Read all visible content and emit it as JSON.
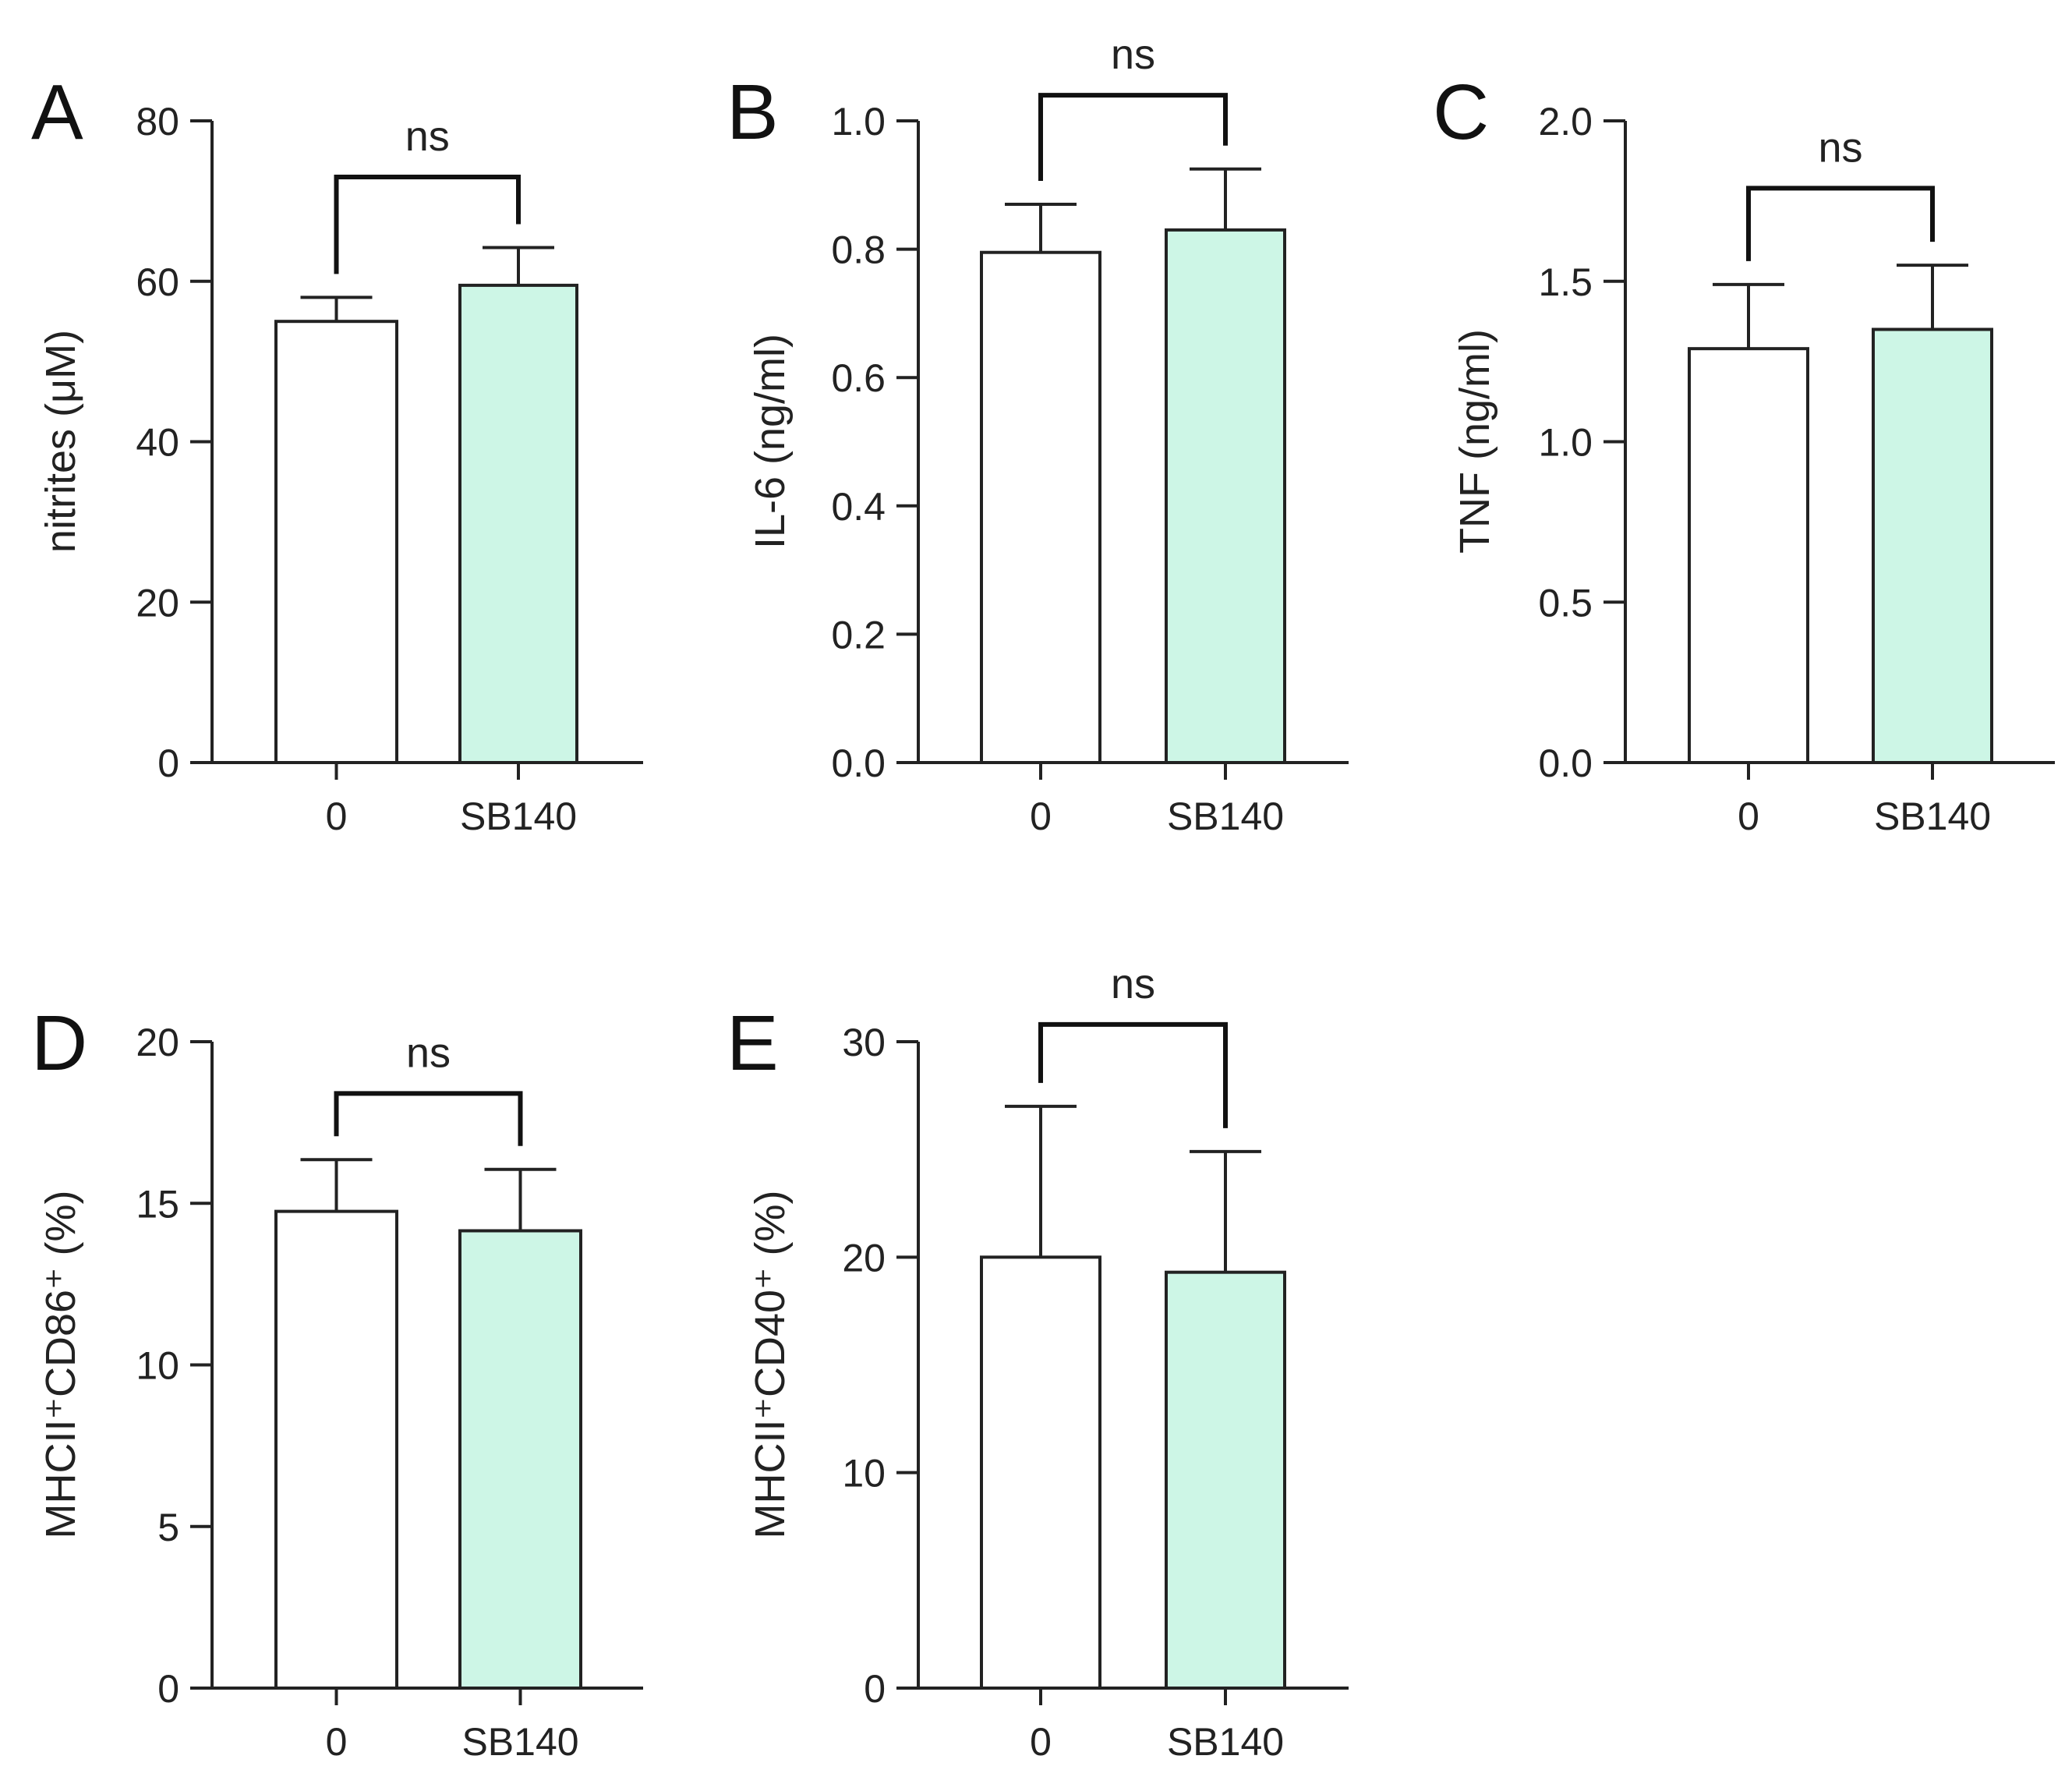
{
  "chart_data": [
    {
      "panel": "A",
      "type": "bar",
      "categories": [
        "0",
        "SB140"
      ],
      "values": [
        55,
        59.5
      ],
      "errors": [
        3,
        4.7
      ],
      "bar_colors": [
        "#ffffff",
        "#cdf6e6"
      ],
      "ylabel": "nitrites (μM)",
      "ylim": [
        0,
        80
      ],
      "yticks": [
        0,
        20,
        40,
        60,
        80
      ],
      "ytick_labels": [
        "0",
        "20",
        "40",
        "60",
        "80"
      ],
      "significance": {
        "label": "ns",
        "level": 73
      }
    },
    {
      "panel": "B",
      "type": "bar",
      "categories": [
        "0",
        "SB140"
      ],
      "values": [
        0.795,
        0.83
      ],
      "errors": [
        0.075,
        0.095
      ],
      "bar_colors": [
        "#ffffff",
        "#cdf6e6"
      ],
      "ylabel": "IL-6 (ng/ml)",
      "ylim": [
        0,
        1.0
      ],
      "yticks": [
        0,
        0.2,
        0.4,
        0.6,
        0.8,
        1.0
      ],
      "ytick_labels": [
        "0.0",
        "0.2",
        "0.4",
        "0.6",
        "0.8",
        "1.0"
      ],
      "significance": {
        "label": "ns",
        "level": 1.04
      }
    },
    {
      "panel": "C",
      "type": "bar",
      "categories": [
        "0",
        "SB140"
      ],
      "values": [
        1.29,
        1.35
      ],
      "errors": [
        0.2,
        0.2
      ],
      "bar_colors": [
        "#ffffff",
        "#cdf6e6"
      ],
      "ylabel": "TNF (ng/ml)",
      "ylim": [
        0,
        2.0
      ],
      "yticks": [
        0,
        0.5,
        1.0,
        1.5,
        2.0
      ],
      "ytick_labels": [
        "0.0",
        "0.5",
        "1.0",
        "1.5",
        "2.0"
      ],
      "significance": {
        "label": "ns",
        "level": 1.79
      }
    },
    {
      "panel": "D",
      "type": "bar",
      "categories": [
        "0",
        "SB140"
      ],
      "values": [
        14.75,
        14.15
      ],
      "errors": [
        1.6,
        1.9
      ],
      "bar_colors": [
        "#ffffff",
        "#cdf6e6"
      ],
      "ylabel": "MHCII⁺CD86⁺ (%)",
      "ylim": [
        0,
        20
      ],
      "yticks": [
        0,
        5,
        10,
        15,
        20
      ],
      "ytick_labels": [
        "0",
        "5",
        "10",
        "15",
        "20"
      ],
      "significance": {
        "label": "ns",
        "level": 18.4
      }
    },
    {
      "panel": "E",
      "type": "bar",
      "categories": [
        "0",
        "SB140"
      ],
      "values": [
        20,
        19.3
      ],
      "errors": [
        7,
        5.6
      ],
      "bar_colors": [
        "#ffffff",
        "#cdf6e6"
      ],
      "ylabel": "MHCII⁺CD40⁺ (%)",
      "ylim": [
        0,
        30
      ],
      "yticks": [
        0,
        10,
        20,
        30
      ],
      "ytick_labels": [
        "0",
        "10",
        "20",
        "30"
      ],
      "significance": {
        "label": "ns",
        "level": 30.8
      }
    }
  ]
}
